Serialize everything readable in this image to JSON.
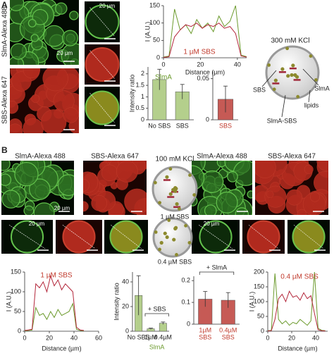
{
  "panels": [
    "A",
    "B"
  ],
  "panel_a": {
    "channels": [
      "SlmA-Alexa 488",
      "SBS-Alexa 647"
    ],
    "scale_bars": [
      "20 µm",
      "20 µm"
    ],
    "diagram": {
      "title": "300 mM KCl",
      "labels": [
        "SBS",
        "SlmA",
        "SlmA-SBS",
        "lipids"
      ]
    }
  },
  "panel_b": {
    "channels": [
      "SlmA-Alexa 488",
      "SBS-Alexa 647",
      "SlmA-Alexa 488",
      "SBS-Alexa 647"
    ],
    "scale_bars": [
      "20 µm",
      "20 µm",
      "20 µm"
    ],
    "diagram": {
      "title": "100 mM KCl",
      "conditions": [
        "1 µM SBS",
        "0.4 µM SBS"
      ]
    }
  },
  "chart_data": [
    {
      "type": "line",
      "annotation": "1 µM SBS",
      "annotation_color": "#c0392b",
      "x_label": "Distance (µm)",
      "y_label": "I (A.U.)",
      "x": [
        0,
        3,
        6,
        9,
        12,
        15,
        18,
        21,
        24,
        27,
        30,
        33,
        36,
        39,
        42,
        45
      ],
      "series": [
        {
          "name": "SlmA",
          "color": "#6b9a2c",
          "values": [
            2,
            5,
            140,
            80,
            95,
            70,
            110,
            85,
            100,
            75,
            120,
            90,
            105,
            150,
            8,
            3
          ]
        },
        {
          "name": "SBS",
          "color": "#b3263a",
          "values": [
            1,
            3,
            60,
            80,
            95,
            90,
            100,
            85,
            95,
            90,
            100,
            85,
            90,
            70,
            5,
            2
          ]
        }
      ],
      "xlim": [
        0,
        45
      ],
      "xticks": [
        0,
        20,
        40
      ],
      "ylim": [
        0,
        150
      ],
      "yticks": [
        0,
        50,
        100,
        150
      ]
    },
    {
      "type": "bar",
      "y_label": "Intensity ratio",
      "annotation": "SlmA",
      "annotation_color": "#6b9a2c",
      "categories": [
        "No SBS",
        "SBS"
      ],
      "values": [
        1.75,
        1.22
      ],
      "errors": [
        0.45,
        0.32
      ],
      "color": "#b4cf8c",
      "ylim": [
        0,
        2.3
      ],
      "yticks": [
        0,
        0.5,
        1,
        1.5,
        2
      ]
    },
    {
      "type": "bar",
      "categories": [
        "SBS"
      ],
      "label_color": "#c0392b",
      "values": [
        0.025
      ],
      "errors": [
        0.016
      ],
      "color": "#c65a55",
      "ylim": [
        0,
        0.06
      ],
      "yticks": [
        0,
        0.05
      ]
    },
    {
      "type": "line",
      "annotation": "1 µM SBS",
      "annotation_color": "#c0392b",
      "x_label": "Distance (µm)",
      "y_label": "I (A.U.)",
      "x": [
        0,
        3,
        6,
        9,
        12,
        15,
        18,
        21,
        24,
        27,
        30,
        33,
        36,
        39,
        42,
        45,
        48
      ],
      "series": [
        {
          "name": "SlmA",
          "color": "#6b9a2c",
          "values": [
            1,
            2,
            3,
            60,
            40,
            45,
            30,
            50,
            35,
            55,
            40,
            45,
            50,
            70,
            5,
            2,
            1
          ]
        },
        {
          "name": "SBS",
          "color": "#b3263a",
          "values": [
            2,
            3,
            5,
            120,
            110,
            125,
            100,
            140,
            115,
            130,
            105,
            120,
            110,
            100,
            10,
            3,
            2
          ]
        }
      ],
      "xlim": [
        0,
        60
      ],
      "xticks": [
        0,
        20,
        40,
        60
      ],
      "ylim": [
        0,
        150
      ],
      "yticks": [
        0,
        50,
        100,
        150
      ]
    },
    {
      "type": "bar",
      "y_label": "Intensity ratio",
      "bracket_label": "+ SBS",
      "sublabel": "SlmA",
      "annotation_color": "#6b9a2c",
      "categories": [
        "No SBS",
        "1µM",
        "0.4µM"
      ],
      "values": [
        29,
        2,
        6.5
      ],
      "errors": [
        16,
        0.5,
        1
      ],
      "color": "#b4cf8c",
      "ylim": [
        0,
        48
      ],
      "yticks": [
        0,
        20,
        40
      ]
    },
    {
      "type": "bar",
      "bracket_label": "+ SlmA",
      "label_color": "#c0392b",
      "categories": [
        [
          "1µM",
          "SBS"
        ],
        [
          "0.4µM",
          "SBS"
        ]
      ],
      "values": [
        0.115,
        0.11
      ],
      "errors": [
        0.035,
        0.035
      ],
      "color": "#c65a55",
      "ylim": [
        0,
        0.22
      ],
      "yticks": [
        0,
        0.1,
        0.2
      ]
    },
    {
      "type": "line",
      "annotation": "0.4 µM SBS",
      "annotation_color": "#c0392b",
      "x_label": "Distance (µm)",
      "y_label": "I (A.U.)",
      "x": [
        0,
        3,
        6,
        9,
        12,
        15,
        18,
        21,
        24,
        27,
        30,
        33,
        36,
        39,
        42,
        45,
        48
      ],
      "series": [
        {
          "name": "SlmA",
          "color": "#6b9a2c",
          "values": [
            2,
            3,
            195,
            40,
            25,
            35,
            20,
            30,
            25,
            40,
            30,
            20,
            35,
            200,
            10,
            3,
            2
          ]
        },
        {
          "name": "SBS",
          "color": "#b3263a",
          "values": [
            1,
            2,
            40,
            110,
            125,
            100,
            135,
            115,
            120,
            105,
            130,
            110,
            120,
            60,
            5,
            2,
            1
          ]
        }
      ],
      "xlim": [
        0,
        50
      ],
      "xticks": [
        0,
        20,
        40
      ],
      "ylim": [
        0,
        200
      ],
      "yticks": [
        0,
        50,
        100,
        150,
        200
      ]
    }
  ]
}
